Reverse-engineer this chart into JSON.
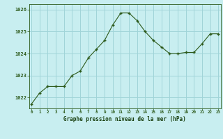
{
  "x": [
    0,
    1,
    2,
    3,
    4,
    5,
    6,
    7,
    8,
    9,
    10,
    11,
    12,
    13,
    14,
    15,
    16,
    17,
    18,
    19,
    20,
    21,
    22,
    23
  ],
  "y": [
    1021.7,
    1022.2,
    1022.5,
    1022.5,
    1022.5,
    1023.0,
    1023.2,
    1023.8,
    1024.2,
    1024.6,
    1025.3,
    1025.85,
    1025.85,
    1025.5,
    1025.0,
    1024.6,
    1024.3,
    1024.0,
    1024.0,
    1024.05,
    1024.05,
    1024.45,
    1024.9,
    1024.9
  ],
  "line_color": "#2d5a1b",
  "marker_color": "#2d5a1b",
  "bg_color": "#c8eef0",
  "grid_color": "#a0d4d8",
  "axis_color": "#2d5a1b",
  "xlabel": "Graphe pression niveau de la mer (hPa)",
  "xlabel_color": "#1a4010",
  "yticks": [
    1022,
    1023,
    1024,
    1025,
    1026
  ],
  "xticks": [
    0,
    1,
    2,
    3,
    4,
    5,
    6,
    7,
    8,
    9,
    10,
    11,
    12,
    13,
    14,
    15,
    16,
    17,
    18,
    19,
    20,
    21,
    22,
    23
  ],
  "ylim": [
    1021.5,
    1026.25
  ],
  "xlim": [
    -0.3,
    23.3
  ]
}
